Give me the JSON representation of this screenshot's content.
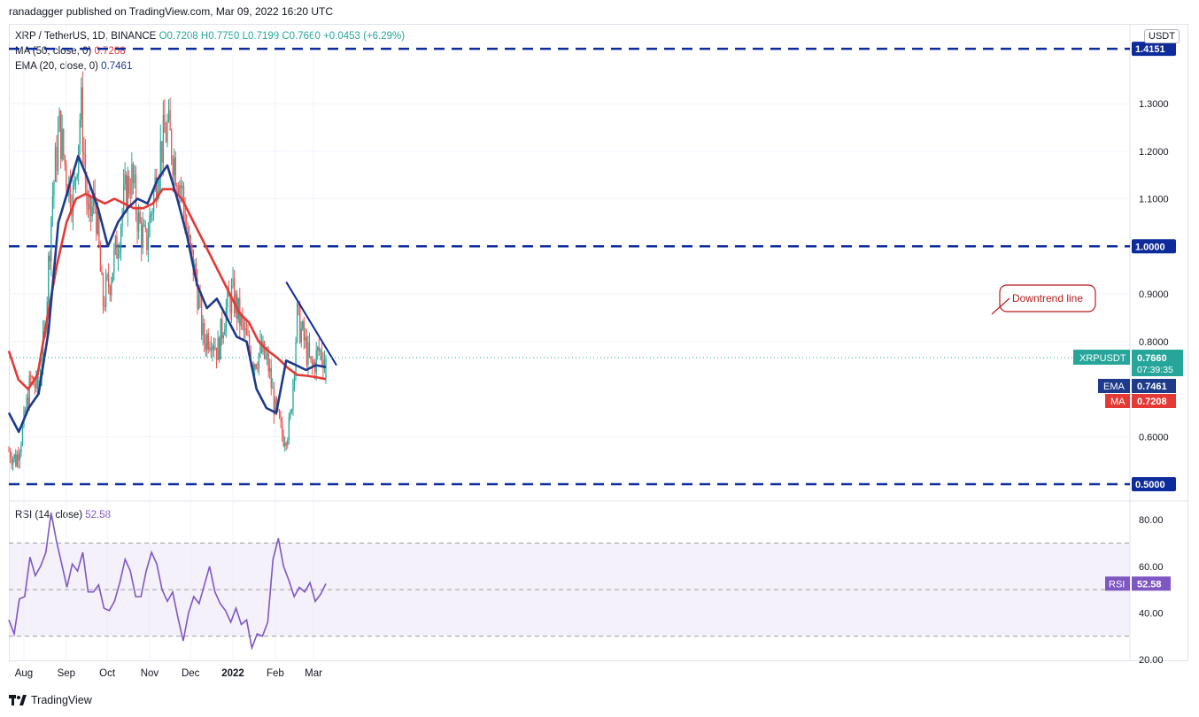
{
  "header": {
    "publisher": "ranadagger published on TradingView.com, Mar 09, 2022 16:20 UTC"
  },
  "legend": {
    "symbol": "XRP / TetherUS, 1D, BINANCE",
    "open": "O0.7208",
    "high": "H0.7750",
    "low": "L0.7199",
    "close": "C0.7660",
    "change": "+0.0453 (+6.29%)",
    "ma_label": "MA (50, close, 0)",
    "ma_value": "0.7208",
    "ema_label": "EMA (20, close, 0)",
    "ema_value": "0.7461",
    "rsi_label": "RSI (14, close)",
    "rsi_value": "52.58"
  },
  "currency": "USDT",
  "footer": {
    "brand": "TradingView"
  },
  "colors": {
    "up": "#26a69a",
    "down": "#ef5350",
    "ma": "#e53935",
    "ema": "#1e3a8a",
    "rsi": "#7e57c2",
    "level": "#0d2b9b",
    "annotation": "#b71c1c"
  },
  "chart_data": [
    {
      "type": "candlestick",
      "title": "XRP / TetherUS, 1D, BINANCE",
      "x_ticks": [
        "Aug",
        "Sep",
        "Oct",
        "Nov",
        "Dec",
        "2022",
        "Feb",
        "Mar"
      ],
      "y_ticks": [
        "1.3000",
        "1.2000",
        "1.1000",
        "1.0000",
        "0.9000",
        "0.8000",
        "0.6000",
        "0.5000"
      ],
      "top_label": "1.4151",
      "ylim": [
        0.48,
        1.42
      ],
      "horizontal_levels": [
        1.4151,
        1.0,
        0.5
      ],
      "level_labels": [
        "1.4151",
        "1.0000",
        "0.5000"
      ],
      "price_tags": [
        {
          "name": "XRPUSDT",
          "value": "0.7660",
          "extra": "07:39:35"
        },
        {
          "name": "EMA",
          "value": "0.7461"
        },
        {
          "name": "MA",
          "value": "0.7208"
        }
      ],
      "annotation": "Downtrend line",
      "trendline": {
        "from_date": "Feb 09",
        "from": 0.925,
        "to_date": "Mar 09",
        "to": 0.75
      },
      "series": [
        {
          "name": "MA",
          "anchors": [
            0.78,
            0.72,
            0.7,
            0.73,
            0.85,
            0.96,
            1.05,
            1.1,
            1.11,
            1.1,
            1.09,
            1.1,
            1.09,
            1.08,
            1.08,
            1.09,
            1.12,
            1.12,
            1.1,
            1.06,
            1.02,
            0.98,
            0.94,
            0.9,
            0.86,
            0.84,
            0.8,
            0.78,
            0.765,
            0.745,
            0.73,
            0.728,
            0.725,
            0.7208
          ]
        },
        {
          "name": "EMA",
          "anchors": [
            0.65,
            0.61,
            0.66,
            0.69,
            0.82,
            1.05,
            1.12,
            1.19,
            1.14,
            1.08,
            1.0,
            1.05,
            1.08,
            1.1,
            1.09,
            1.14,
            1.17,
            1.1,
            1.02,
            0.92,
            0.87,
            0.89,
            0.85,
            0.81,
            0.8,
            0.7,
            0.66,
            0.65,
            0.76,
            0.75,
            0.74,
            0.75,
            0.7461
          ]
        }
      ],
      "close_anchors": [
        0.57,
        0.55,
        0.62,
        0.72,
        0.7,
        0.82,
        1.1,
        1.25,
        1.15,
        1.1,
        1.3,
        1.05,
        1.1,
        0.88,
        0.93,
        1.0,
        1.1,
        1.15,
        1.05,
        1.0,
        1.1,
        1.2,
        1.25,
        1.18,
        1.12,
        1.0,
        0.93,
        0.8,
        0.82,
        0.78,
        0.86,
        0.9,
        0.85,
        0.8,
        0.76,
        0.78,
        0.75,
        0.65,
        0.6,
        0.62,
        0.85,
        0.8,
        0.74,
        0.78,
        0.766
      ]
    },
    {
      "type": "line",
      "title": "RSI (14, close)",
      "y_ticks": [
        "80.00",
        "60.00",
        "40.00",
        "20.00"
      ],
      "ylim": [
        20,
        84
      ],
      "band": [
        30,
        70
      ],
      "midline": 50,
      "series": [
        {
          "name": "RSI",
          "values": [
            37,
            31,
            46,
            47,
            64,
            56,
            60,
            66,
            83,
            71,
            61,
            51,
            61,
            58,
            66,
            49,
            49,
            52,
            42,
            41,
            45,
            53,
            63,
            58,
            47,
            47,
            58,
            66,
            61,
            50,
            45,
            49,
            38,
            28,
            40,
            47,
            44,
            52,
            60,
            49,
            44,
            41,
            36,
            42,
            35,
            37,
            25,
            31,
            30,
            36,
            63,
            72,
            60,
            54,
            47,
            51,
            49,
            53,
            45,
            48,
            52.58
          ]
        }
      ]
    }
  ]
}
